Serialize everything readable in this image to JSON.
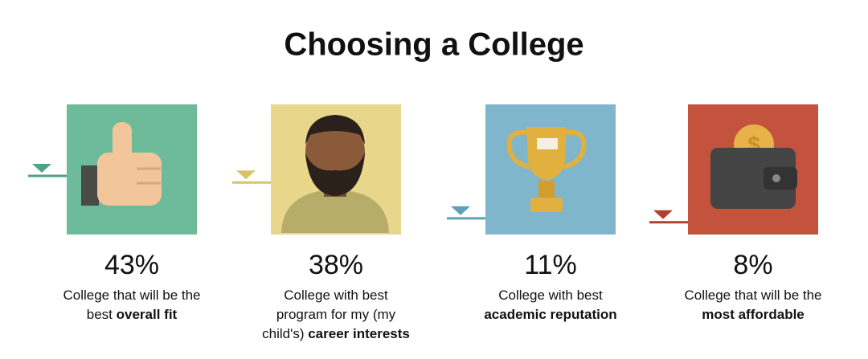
{
  "title": "Choosing a College",
  "items": [
    {
      "value": 43,
      "value_label": "43%",
      "color": "#6dbb9a",
      "marker_color": "#4fa383",
      "lines": [
        [
          {
            "text": "College that will be the",
            "bold": false
          }
        ],
        [
          {
            "text": "best ",
            "bold": false
          },
          {
            "text": "overall fit",
            "bold": true
          }
        ]
      ]
    },
    {
      "value": 38,
      "value_label": "38%",
      "color": "#e8d68a",
      "marker_color": "#d8c36a",
      "lines": [
        [
          {
            "text": "College with best",
            "bold": false
          }
        ],
        [
          {
            "text": "program for my (my",
            "bold": false
          }
        ],
        [
          {
            "text": "child's) ",
            "bold": false
          },
          {
            "text": "career interests",
            "bold": true
          }
        ]
      ]
    },
    {
      "value": 11,
      "value_label": "11%",
      "color": "#7fb6cc",
      "marker_color": "#5f9fb8",
      "lines": [
        [
          {
            "text": "College with best",
            "bold": false
          }
        ],
        [
          {
            "text": "academic reputation",
            "bold": true
          }
        ]
      ]
    },
    {
      "value": 8,
      "value_label": "8%",
      "color": "#c4533d",
      "marker_color": "#b0412c",
      "lines": [
        [
          {
            "text": "College that will be the",
            "bold": false
          }
        ],
        [
          {
            "text": "most affordable",
            "bold": true
          }
        ]
      ]
    }
  ]
}
